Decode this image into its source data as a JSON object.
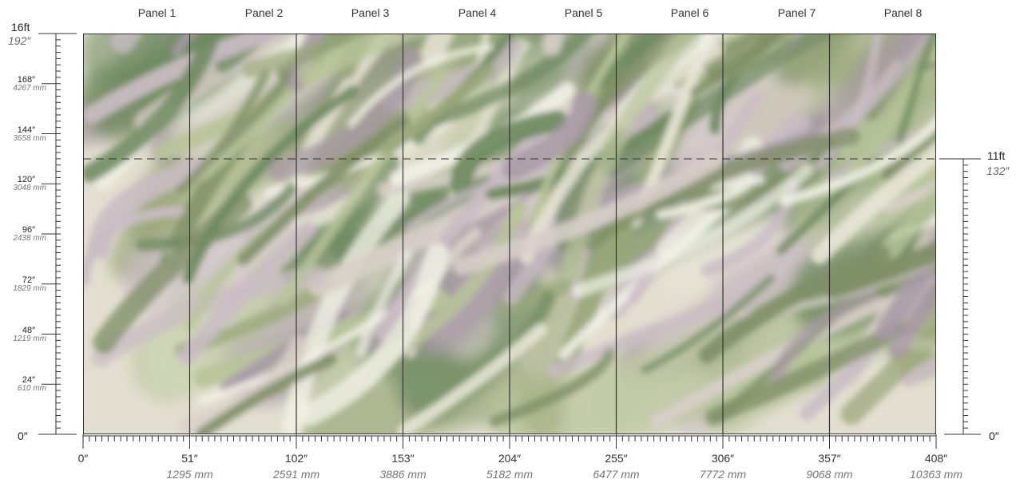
{
  "panels": [
    "Panel 1",
    "Panel 2",
    "Panel 3",
    "Panel 4",
    "Panel 5",
    "Panel 6",
    "Panel 7",
    "Panel 8"
  ],
  "left_scale": {
    "top_ft": "16ft",
    "top_in": "192″",
    "zero": "0″",
    "marks": [
      {
        "in": "168″",
        "mm": "4267 mm"
      },
      {
        "in": "144″",
        "mm": "3658 mm"
      },
      {
        "in": "120″",
        "mm": "3048 mm"
      },
      {
        "in": "96″",
        "mm": "2438 mm"
      },
      {
        "in": "72″",
        "mm": "1829 mm"
      },
      {
        "in": "48″",
        "mm": "1219 mm"
      },
      {
        "in": "24″",
        "mm": "610 mm"
      }
    ]
  },
  "right_scale": {
    "top_ft": "11ft",
    "top_in": "132″",
    "zero": "0″"
  },
  "bottom_scale": [
    {
      "in": "0″",
      "mm": ""
    },
    {
      "in": "51″",
      "mm": "1295 mm"
    },
    {
      "in": "102″",
      "mm": "2591 mm"
    },
    {
      "in": "153″",
      "mm": "3886 mm"
    },
    {
      "in": "204″",
      "mm": "5182 mm"
    },
    {
      "in": "255″",
      "mm": "6477 mm"
    },
    {
      "in": "306″",
      "mm": "7772 mm"
    },
    {
      "in": "357″",
      "mm": "9068 mm"
    },
    {
      "in": "408″",
      "mm": "10363 mm"
    }
  ],
  "mural": {
    "colors": [
      "#e8e6d6",
      "#b8c49a",
      "#9aa77a",
      "#c9bcc4",
      "#a89aa6",
      "#f1f1e6",
      "#7f8f66",
      "#d8cfc9",
      "#6e8a60"
    ]
  }
}
